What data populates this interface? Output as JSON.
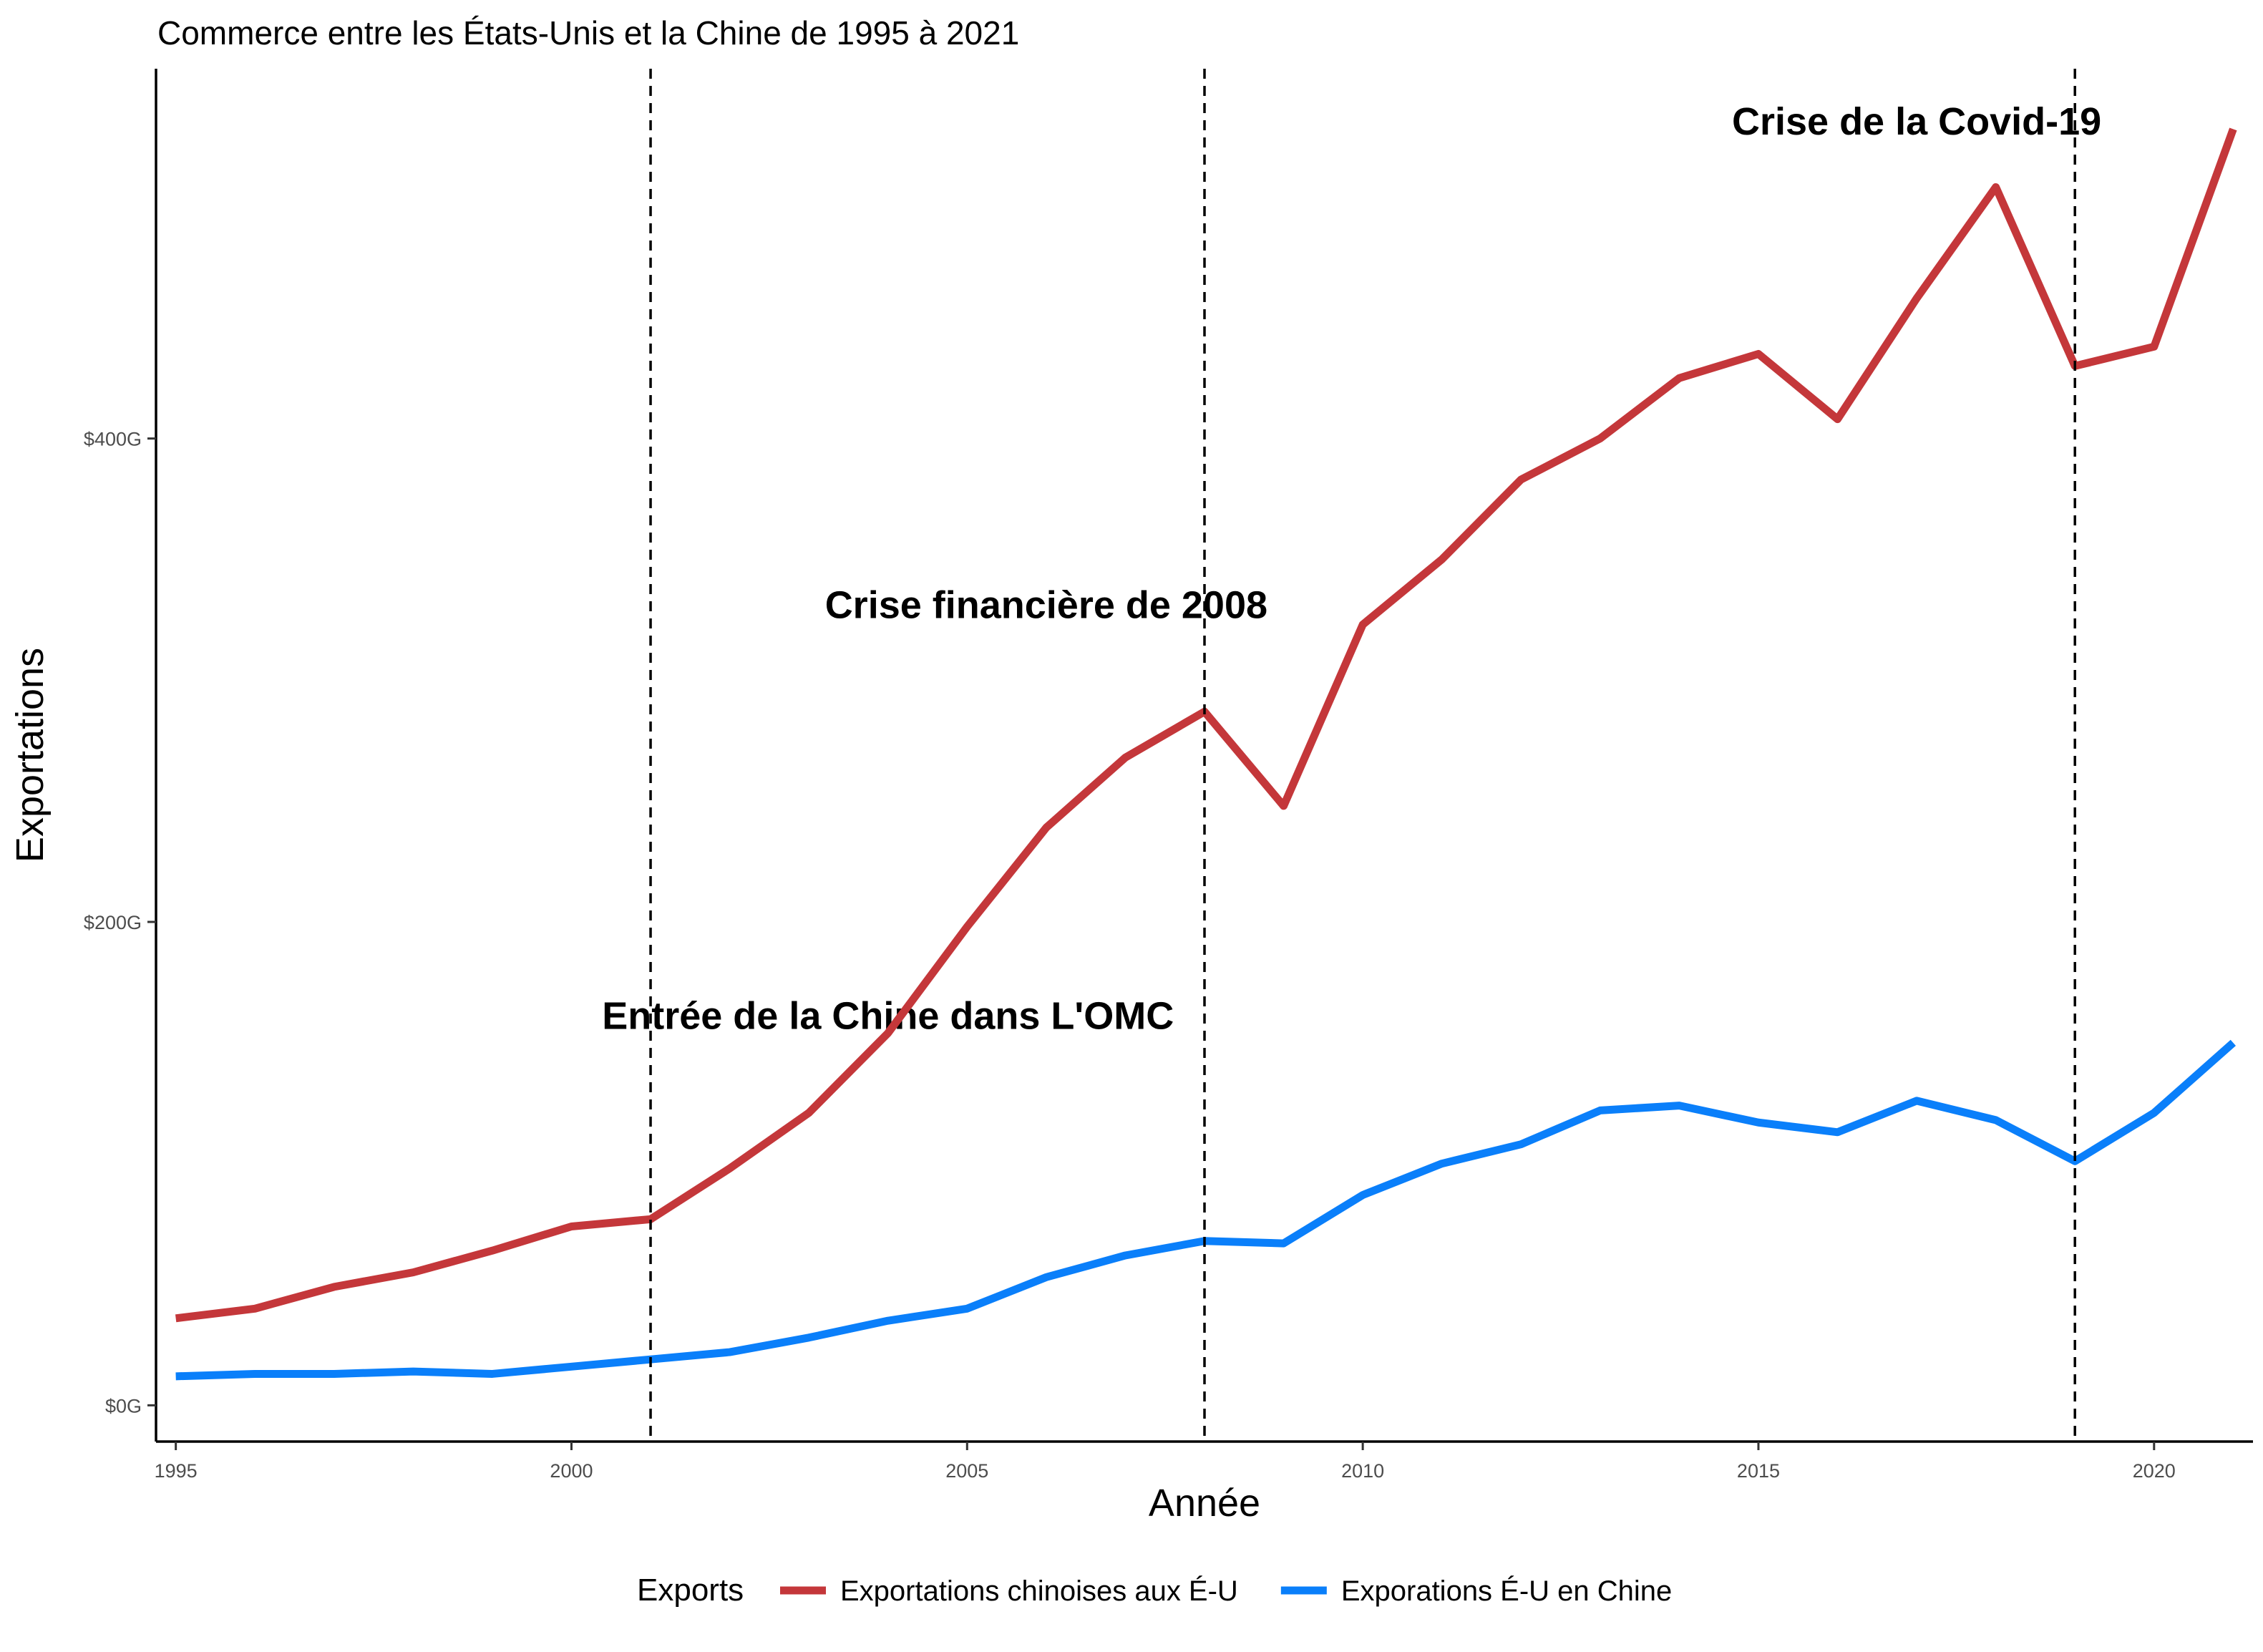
{
  "chart_data": {
    "type": "line",
    "title": "Commerce entre les États-Unis et la Chine de 1995 à 2021",
    "xlabel": "Année",
    "ylabel": "Exportations",
    "x": [
      1995,
      1996,
      1997,
      1998,
      1999,
      2000,
      2001,
      2002,
      2003,
      2004,
      2005,
      2006,
      2007,
      2008,
      2009,
      2010,
      2011,
      2012,
      2013,
      2014,
      2015,
      2016,
      2017,
      2018,
      2019,
      2020,
      2021
    ],
    "series": [
      {
        "name": "Exportations chinoises aux É-U",
        "color": "#C4373A",
        "values": [
          36,
          40,
          49,
          55,
          64,
          74,
          77,
          98,
          121,
          154,
          198,
          239,
          268,
          287,
          248,
          323,
          350,
          383,
          400,
          425,
          435,
          408,
          458,
          504,
          430,
          438,
          528
        ]
      },
      {
        "name": "Exporations É-U en Chine",
        "color": "#0A7FFA",
        "values": [
          12,
          13,
          13,
          14,
          13,
          16,
          19,
          22,
          28,
          35,
          40,
          53,
          62,
          68,
          67,
          87,
          100,
          108,
          122,
          124,
          117,
          113,
          126,
          118,
          101,
          121,
          150
        ]
      }
    ],
    "xlim": [
      1994.75,
      2021.25
    ],
    "ylim": [
      -15,
      553
    ],
    "xticks": [
      1995,
      2000,
      2005,
      2010,
      2015,
      2020
    ],
    "yticks": [
      {
        "value": 0,
        "label": "$0G"
      },
      {
        "value": 200,
        "label": "$200G"
      },
      {
        "value": 400,
        "label": "$400G"
      }
    ],
    "vlines": [
      2001,
      2008,
      2019
    ],
    "annotations": [
      {
        "text": "Entrée de la Chine dans L'OMC",
        "x": 2004,
        "y": 160
      },
      {
        "text": "Crise financière de 2008",
        "x": 2006,
        "y": 330
      },
      {
        "text": "Crise de la Covid-19",
        "x": 2017,
        "y": 530
      }
    ],
    "legend": {
      "title": "Exports",
      "position": "bottom"
    },
    "grid": false
  }
}
